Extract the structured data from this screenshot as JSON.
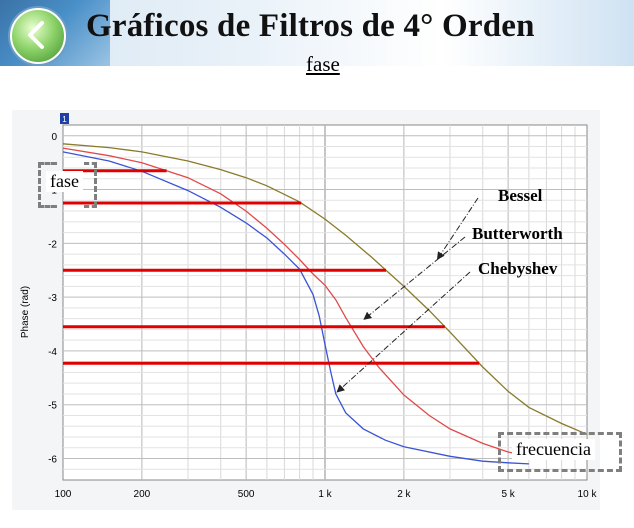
{
  "slide": {
    "title": "Gráficos de Filtros de 4° Orden",
    "subtitle": "fase"
  },
  "chart_data": {
    "type": "line",
    "marker_label": "1",
    "ylabel": "Phase (rad)",
    "xscale": "log",
    "xlim": [
      100,
      10000
    ],
    "ylim": [
      -6.4,
      0.2
    ],
    "x_ticks": [
      100,
      200,
      500,
      1000,
      2000,
      5000,
      10000
    ],
    "x_tick_labels": [
      "100",
      "200",
      "500",
      "1 k",
      "2 k",
      "5 k",
      "10 k"
    ],
    "y_ticks": [
      0,
      -1,
      -2,
      -3,
      -4,
      -5,
      -6
    ],
    "y_tick_labels": [
      "0",
      "-1",
      "-2",
      "-3",
      "-4",
      "-5",
      "-6"
    ],
    "grid": true,
    "series": [
      {
        "name": "Bessel",
        "color": "#8a7a2a",
        "x": [
          100,
          150,
          200,
          300,
          400,
          500,
          600,
          700,
          800,
          1000,
          1200,
          1500,
          2000,
          2500,
          3000,
          4000,
          5000,
          6000,
          8000,
          10000
        ],
        "y": [
          -0.15,
          -0.22,
          -0.3,
          -0.47,
          -0.63,
          -0.78,
          -0.93,
          -1.09,
          -1.23,
          -1.55,
          -1.85,
          -2.25,
          -2.8,
          -3.25,
          -3.65,
          -4.3,
          -4.75,
          -5.05,
          -5.35,
          -5.55
        ]
      },
      {
        "name": "Butterworth",
        "color": "#e04a4a",
        "x": [
          100,
          150,
          200,
          300,
          400,
          500,
          600,
          700,
          800,
          900,
          1000,
          1100,
          1200,
          1400,
          1600,
          2000,
          2500,
          3000,
          4000,
          5000,
          6000
        ],
        "y": [
          -0.23,
          -0.37,
          -0.5,
          -0.78,
          -1.08,
          -1.4,
          -1.72,
          -2.02,
          -2.3,
          -2.57,
          -2.78,
          -3.05,
          -3.38,
          -3.92,
          -4.3,
          -4.82,
          -5.2,
          -5.45,
          -5.72,
          -5.88,
          -5.96
        ]
      },
      {
        "name": "Chebyshev",
        "color": "#3a54d6",
        "x": [
          100,
          150,
          200,
          300,
          400,
          500,
          600,
          700,
          800,
          900,
          950,
          1000,
          1050,
          1100,
          1200,
          1400,
          1700,
          2000,
          3000,
          4000,
          5000,
          6000
        ],
        "y": [
          -0.3,
          -0.47,
          -0.66,
          -1.02,
          -1.33,
          -1.62,
          -1.9,
          -2.2,
          -2.48,
          -2.95,
          -3.35,
          -3.88,
          -4.38,
          -4.8,
          -5.15,
          -5.45,
          -5.66,
          -5.78,
          -5.96,
          -6.05,
          -6.08,
          -6.1
        ]
      }
    ],
    "reference_lines_y": [
      -0.65,
      -1.25,
      -2.5,
      -3.55,
      -4.23
    ],
    "legend": {
      "bessel": "Bessel",
      "butterworth": "Butterworth",
      "chebyshev": "Chebyshev"
    }
  },
  "annotations": {
    "fase_box": "fase",
    "frecuencia_box": "frecuencia"
  },
  "colors": {
    "bessel": "#8a7a2a",
    "butterworth": "#e04a4a",
    "chebyshev": "#3a54d6",
    "ref_line": "#e00000",
    "accent": "#3c8f2c"
  },
  "icons": {
    "back": "back-arrow-icon"
  }
}
